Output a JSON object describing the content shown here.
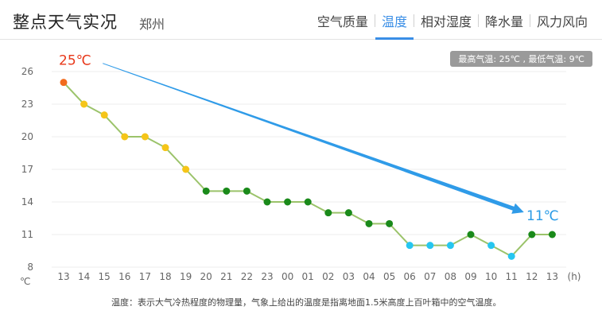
{
  "header": {
    "title": "整点天气实况",
    "city": "郑州",
    "tabs": [
      {
        "label": "空气质量",
        "active": false
      },
      {
        "label": "温度",
        "active": true
      },
      {
        "label": "相对湿度",
        "active": false
      },
      {
        "label": "降水量",
        "active": false
      },
      {
        "label": "风力风向",
        "active": false
      }
    ]
  },
  "summary_label": "最高气温: 25℃ , 最低气温: 9℃",
  "footnote": "温度：表示大气冷热程度的物理量，气象上给出的温度是指离地面1.5米高度上百叶箱中的空气温度。",
  "colors": {
    "accent": "#3a8ee6",
    "line": "#9bc36a",
    "hot": "#f26b1d",
    "warm": "#f5c518",
    "mild": "#1a8a1a",
    "cool": "#26c6f0",
    "high_label": "#e8381a",
    "low_label": "#2a9be6",
    "arrow": "#2f9be8"
  },
  "chart_data": {
    "type": "line",
    "categories": [
      "13",
      "14",
      "15",
      "16",
      "17",
      "18",
      "19",
      "20",
      "21",
      "22",
      "23",
      "00",
      "01",
      "02",
      "03",
      "04",
      "05",
      "06",
      "07",
      "08",
      "09",
      "10",
      "11",
      "12",
      "13"
    ],
    "values": [
      25,
      23,
      22,
      20,
      20,
      19,
      17,
      15,
      15,
      15,
      14,
      14,
      14,
      13,
      13,
      12,
      12,
      10,
      10,
      10,
      11,
      10,
      9,
      11,
      11
    ],
    "point_colors": [
      "hot",
      "warm",
      "warm",
      "warm",
      "warm",
      "warm",
      "warm",
      "mild",
      "mild",
      "mild",
      "mild",
      "mild",
      "mild",
      "mild",
      "mild",
      "mild",
      "mild",
      "cool",
      "cool",
      "cool",
      "mild",
      "cool",
      "cool",
      "mild",
      "mild"
    ],
    "ylim": [
      8,
      26
    ],
    "yticks": [
      8,
      11,
      14,
      17,
      20,
      23,
      26
    ],
    "ylabel": "℃",
    "xlabel": "(h)",
    "grid": true,
    "annotations": [
      {
        "text": "25℃",
        "index": 0
      },
      {
        "text": "11℃",
        "index": 24
      }
    ],
    "trend_arrow": {
      "from_index": 2,
      "to_index": 23
    }
  }
}
